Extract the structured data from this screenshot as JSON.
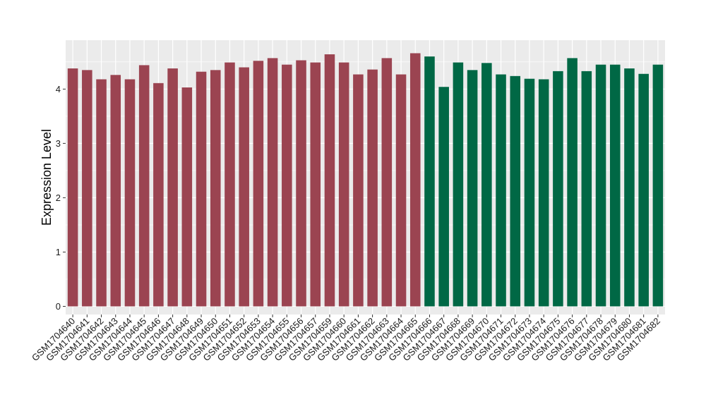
{
  "chart_data": {
    "type": "bar",
    "title": "",
    "xlabel": "",
    "ylabel": "Expression Level",
    "ylim": [
      -0.15,
      4.9
    ],
    "yticks": [
      0,
      1,
      2,
      3,
      4
    ],
    "grid": true,
    "legend": "none",
    "colors": {
      "panel_background": "#EBEBEB",
      "grid_major": "#FFFFFF",
      "group_1": "#9B4451",
      "group_2": "#006845"
    },
    "categories": [
      "GSM1704640",
      "GSM1704641",
      "GSM1704642",
      "GSM1704643",
      "GSM1704644",
      "GSM1704645",
      "GSM1704646",
      "GSM1704647",
      "GSM1704648",
      "GSM1704649",
      "GSM1704650",
      "GSM1704651",
      "GSM1704652",
      "GSM1704653",
      "GSM1704654",
      "GSM1704655",
      "GSM1704656",
      "GSM1704657",
      "GSM1704659",
      "GSM1704660",
      "GSM1704661",
      "GSM1704662",
      "GSM1704663",
      "GSM1704664",
      "GSM1704665",
      "GSM1704666",
      "GSM1704667",
      "GSM1704668",
      "GSM1704669",
      "GSM1704670",
      "GSM1704671",
      "GSM1704672",
      "GSM1704673",
      "GSM1704674",
      "GSM1704675",
      "GSM1704676",
      "GSM1704677",
      "GSM1704678",
      "GSM1704679",
      "GSM1704680",
      "GSM1704681",
      "GSM1704682"
    ],
    "values": [
      4.38,
      4.35,
      4.18,
      4.26,
      4.18,
      4.44,
      4.11,
      4.38,
      4.03,
      4.32,
      4.35,
      4.49,
      4.4,
      4.52,
      4.57,
      4.45,
      4.53,
      4.49,
      4.64,
      4.49,
      4.27,
      4.36,
      4.57,
      4.27,
      4.66,
      4.6,
      4.04,
      4.49,
      4.35,
      4.48,
      4.27,
      4.24,
      4.19,
      4.18,
      4.33,
      4.57,
      4.33,
      4.45,
      4.45,
      4.38,
      4.28,
      4.45
    ],
    "groups": [
      1,
      1,
      1,
      1,
      1,
      1,
      1,
      1,
      1,
      1,
      1,
      1,
      1,
      1,
      1,
      1,
      1,
      1,
      1,
      1,
      1,
      1,
      1,
      1,
      1,
      2,
      2,
      2,
      2,
      2,
      2,
      2,
      2,
      2,
      2,
      2,
      2,
      2,
      2,
      2,
      2,
      2
    ]
  }
}
